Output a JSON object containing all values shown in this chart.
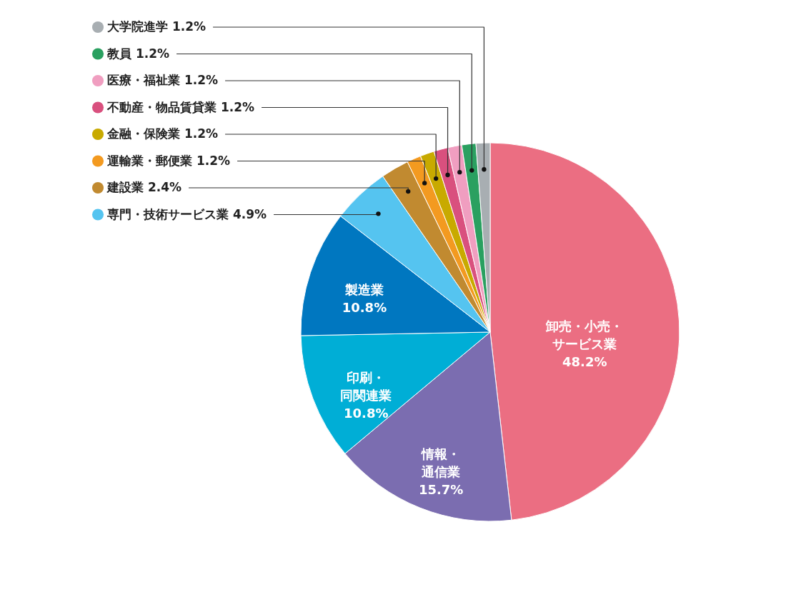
{
  "chart_data": {
    "type": "pie",
    "legend": "top left",
    "categories": [
      "卸売・小売・サービス業",
      "情報・通信業",
      "印刷・同関連業",
      "製造業",
      "専門・技術サービス業",
      "建設業",
      "運輸業・郵便業",
      "金融・保険業",
      "不動産・物品賃貸業",
      "医療・福祉業",
      "教員",
      "大学院進学"
    ],
    "values": [
      48.2,
      15.7,
      10.8,
      10.8,
      4.9,
      2.4,
      1.2,
      1.2,
      1.2,
      1.2,
      1.2,
      1.2
    ],
    "value_labels": [
      "48.2%",
      "15.7%",
      "10.8%",
      "10.8%",
      "4.9%",
      "2.4%",
      "1.2%",
      "1.2%",
      "1.2%",
      "1.2%",
      "1.2%",
      "1.2%"
    ],
    "colors": [
      "#eb6e82",
      "#7b6db0",
      "#00aed6",
      "#0077c0",
      "#55c4f0",
      "#c18a30",
      "#f39a20",
      "#c8aa00",
      "#d9507e",
      "#f09ec0",
      "#2aa060",
      "#a8aeb2"
    ]
  }
}
